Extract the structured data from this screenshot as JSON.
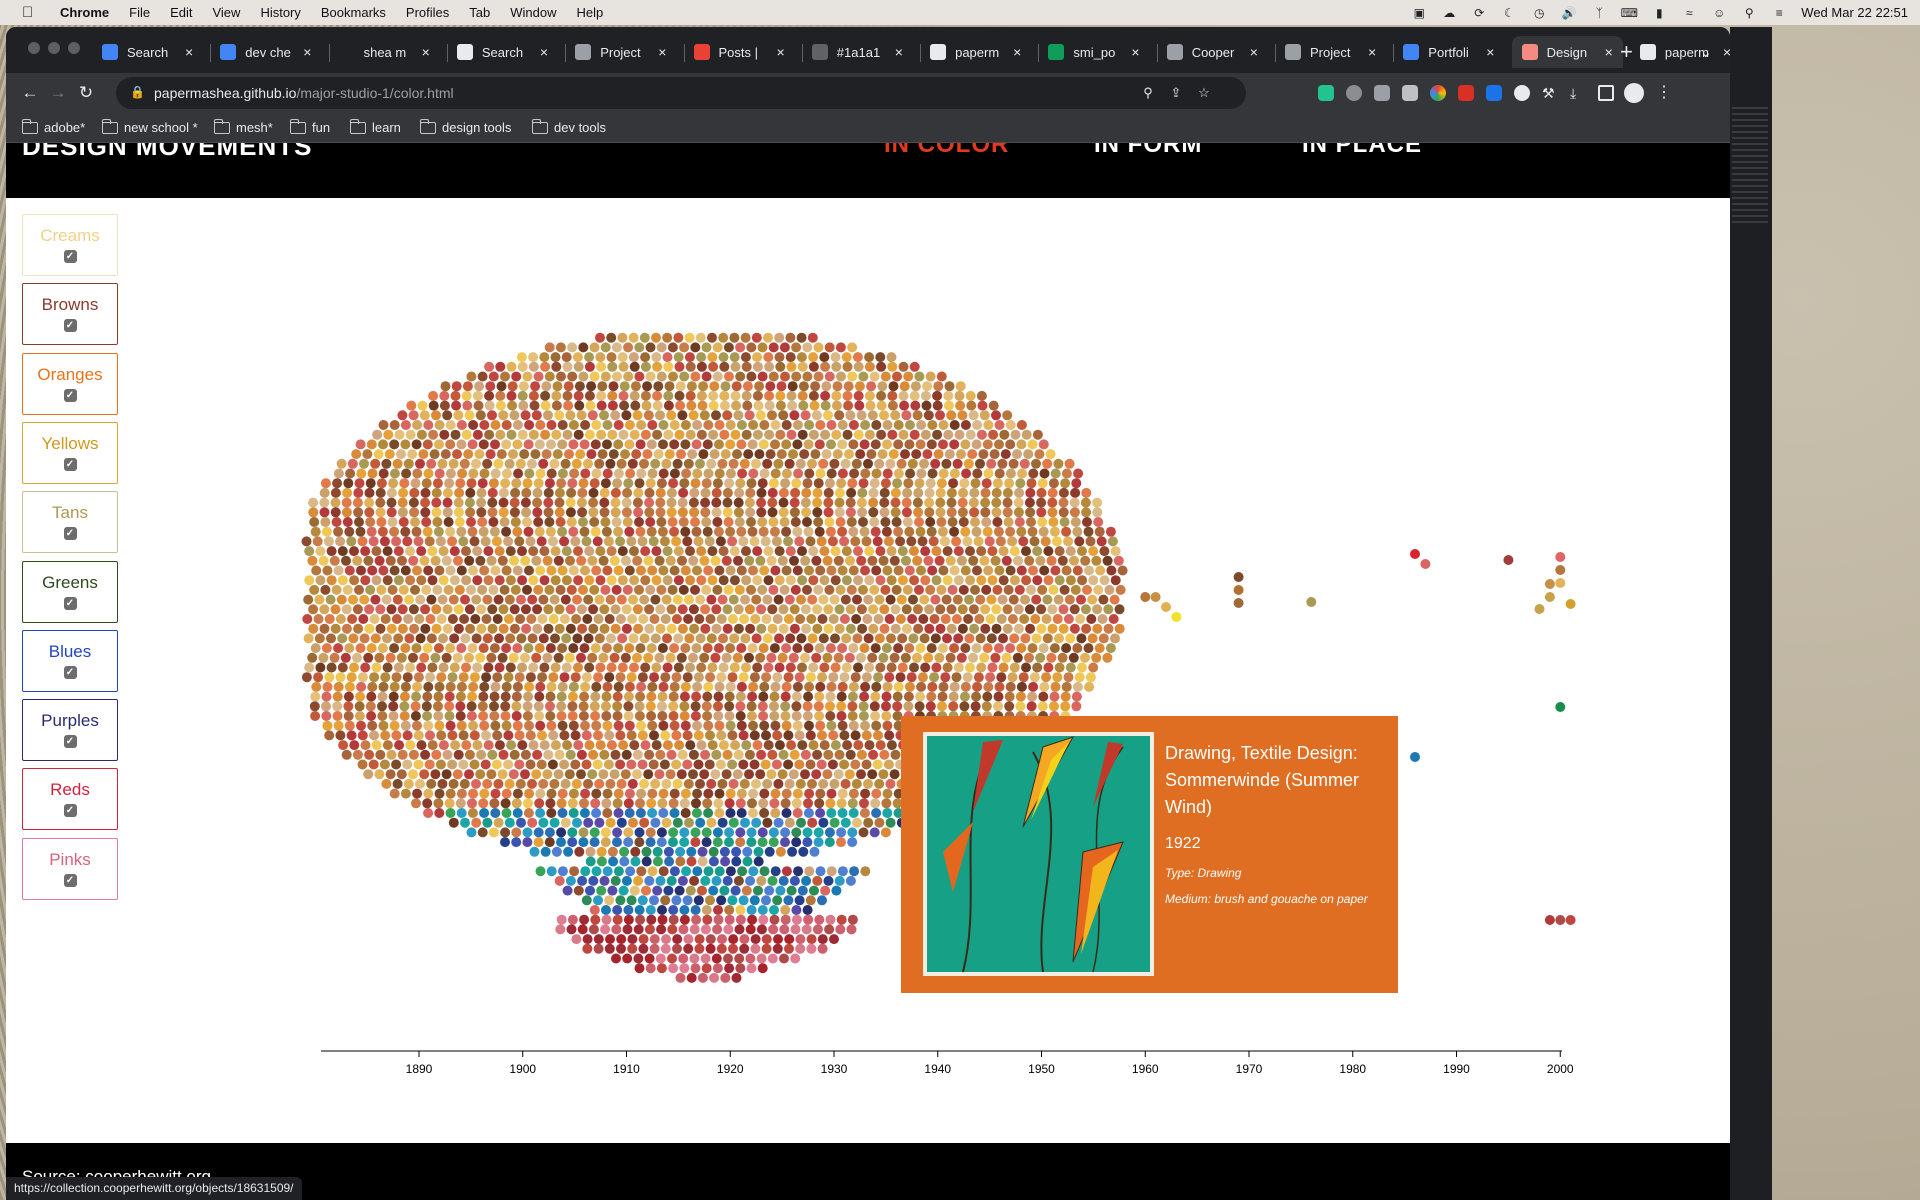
{
  "menubar": {
    "app": "Chrome",
    "menus": [
      "File",
      "Edit",
      "View",
      "History",
      "Bookmarks",
      "Profiles",
      "Tab",
      "Window",
      "Help"
    ],
    "clock": "Wed Mar 22  22:51"
  },
  "tabs": [
    {
      "title": "Search",
      "color": "#4285f4"
    },
    {
      "title": "dev che",
      "color": "#4285f4"
    },
    {
      "title": "shea m",
      "color": "#202124"
    },
    {
      "title": "Search",
      "color": "#e8eaed"
    },
    {
      "title": "Project",
      "color": "#9aa0a6"
    },
    {
      "title": "Posts |",
      "color": "#e94235"
    },
    {
      "title": "#1a1a1",
      "color": "#5f6368"
    },
    {
      "title": "paperm",
      "color": "#e8eaed"
    },
    {
      "title": "smi_po",
      "color": "#0f9d58"
    },
    {
      "title": "Cooper",
      "color": "#9aa0a6"
    },
    {
      "title": "Project",
      "color": "#9aa0a6"
    },
    {
      "title": "Portfoli",
      "color": "#4285f4"
    },
    {
      "title": "Design",
      "color": "#f28b82",
      "active": true
    },
    {
      "title": "paperm",
      "color": "#e8eaed"
    }
  ],
  "address": {
    "host": "papermashea.github.io",
    "path": "/major-studio-1/color.html"
  },
  "bookmarks": [
    "adobe*",
    "new school *",
    "mesh*",
    "fun",
    "learn",
    "design tools",
    "dev tools"
  ],
  "site": {
    "brand": "DESIGN MOVEMENTS",
    "nav": [
      {
        "label": "IN COLOR",
        "active": true
      },
      {
        "label": "IN FORM",
        "active": false
      },
      {
        "label": "IN PLACE",
        "active": false
      }
    ]
  },
  "filters": [
    {
      "label": "Creams",
      "color": "#f2d08a",
      "border": "#f4e3bb",
      "checked": true
    },
    {
      "label": "Browns",
      "color": "#8b3a2b",
      "border": "#8b3a2b",
      "checked": true
    },
    {
      "label": "Oranges",
      "color": "#e8731c",
      "border": "#e8731c",
      "checked": true
    },
    {
      "label": "Yellows",
      "color": "#cf9a1d",
      "border": "#d9a533",
      "checked": true
    },
    {
      "label": "Tans",
      "color": "#a89a55",
      "border": "#c9bf8f",
      "checked": true
    },
    {
      "label": "Greens",
      "color": "#2c4a1c",
      "border": "#2c4a1c",
      "checked": true
    },
    {
      "label": "Blues",
      "color": "#2146c4",
      "border": "#2146c4",
      "checked": true
    },
    {
      "label": "Purples",
      "color": "#2a2a6e",
      "border": "#2a2a6e",
      "checked": true
    },
    {
      "label": "Reds",
      "color": "#d1213b",
      "border": "#d1213b",
      "checked": true
    },
    {
      "label": "Pinks",
      "color": "#d9647a",
      "border": "#e07d95",
      "checked": true
    }
  ],
  "chart_data": {
    "type": "scatter",
    "x_ticks": [
      1890,
      1900,
      1910,
      1920,
      1930,
      1940,
      1950,
      1960,
      1970,
      1980,
      1990,
      2000
    ],
    "xlim": [
      1881,
      2001
    ],
    "outliers": [
      {
        "year": 1960,
        "color": "#b5763c"
      },
      {
        "year": 1961,
        "color": "#c89046"
      },
      {
        "year": 1962,
        "color": "#e5b04f"
      },
      {
        "year": 1963,
        "color": "#f2e12b"
      },
      {
        "year": 1969,
        "color": "#7a4a2a"
      },
      {
        "year": 1969,
        "color": "#b0712e"
      },
      {
        "year": 1969,
        "color": "#9c6a35"
      },
      {
        "year": 1976,
        "color": "#a89a55"
      },
      {
        "year": 1986,
        "color": "#d9242f"
      },
      {
        "year": 1987,
        "color": "#d7675f"
      },
      {
        "year": 1995,
        "color": "#a23b3b"
      },
      {
        "year": 2000,
        "color": "#e06567"
      },
      {
        "year": 1999,
        "color": "#c89046"
      },
      {
        "year": 2000,
        "color": "#b5763c"
      },
      {
        "year": 1998,
        "color": "#c8a24a"
      },
      {
        "year": 2000,
        "color": "#e2b35a"
      },
      {
        "year": 2001,
        "color": "#d4a12e"
      },
      {
        "year": 1999,
        "color": "#c8a24a"
      },
      {
        "year": 2000,
        "color": "#1a8c4e"
      },
      {
        "year": 1986,
        "color": "#1b7ab3"
      },
      {
        "year": 1938,
        "color": "#a8242c"
      },
      {
        "year": 1940,
        "color": "#c0262f"
      },
      {
        "year": 1941,
        "color": "#b5393b"
      },
      {
        "year": 1949,
        "color": "#8c1d24"
      },
      {
        "year": 1950,
        "color": "#c0262f"
      },
      {
        "year": 1951,
        "color": "#a8242c"
      },
      {
        "year": 1954,
        "color": "#a84a4a"
      },
      {
        "year": 1979,
        "color": "#a8242c"
      },
      {
        "year": 1999,
        "color": "#b33a3a"
      },
      {
        "year": 2000,
        "color": "#b04a4a"
      },
      {
        "year": 2001,
        "color": "#c0473f"
      }
    ]
  },
  "tooltip": {
    "title": "Drawing, Textile Design: Sommerwinde (Summer Wind)",
    "year": "1922",
    "type": "Type: Drawing",
    "medium": "Medium: brush and gouache on paper",
    "thumb_caption": "Sommerwinde",
    "thumb_bg": "#16a085"
  },
  "footer": {
    "source": "Source: cooperhewitt.org"
  },
  "statusbar": {
    "url": "https://collection.cooperhewitt.org/objects/18631509/"
  }
}
